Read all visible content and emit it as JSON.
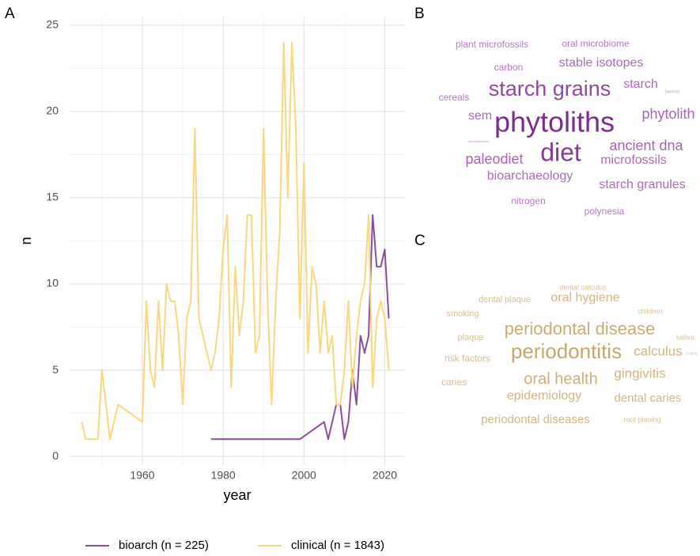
{
  "chart_data": [
    {
      "type": "line",
      "label": "A",
      "xlabel": "year",
      "ylabel": "n",
      "xlim": [
        1942,
        2025
      ],
      "ylim": [
        -0.5,
        25.5
      ],
      "xticks": [
        1960,
        1980,
        2000,
        2020
      ],
      "yticks": [
        0,
        5,
        10,
        15,
        20,
        25
      ],
      "xminor": [
        1950,
        1970,
        1990,
        2010
      ],
      "yminor": [
        2.5,
        7.5,
        12.5,
        17.5,
        22.5
      ],
      "grid": true,
      "legend": "bottom",
      "series": [
        {
          "name": "bioarch (n = 225)",
          "color": "#8a4e9b",
          "x": [
            1977,
            1999,
            2005,
            2006,
            2008,
            2009,
            2010,
            2011,
            2012,
            2013,
            2014,
            2015,
            2016,
            2017,
            2018,
            2019,
            2020,
            2021
          ],
          "values": [
            1,
            1,
            2,
            1,
            3,
            3,
            1,
            2,
            5,
            3,
            7,
            6,
            7,
            14,
            11,
            11,
            12,
            8
          ]
        },
        {
          "name": "clinical (n = 1843)",
          "color": "#f9d77e",
          "x": [
            1945,
            1946,
            1949,
            1950,
            1952,
            1954,
            1960,
            1961,
            1962,
            1963,
            1964,
            1965,
            1966,
            1967,
            1968,
            1969,
            1970,
            1971,
            1972,
            1973,
            1974,
            1977,
            1978,
            1979,
            1980,
            1981,
            1982,
            1983,
            1984,
            1985,
            1986,
            1987,
            1988,
            1989,
            1990,
            1991,
            1992,
            1993,
            1994,
            1995,
            1996,
            1997,
            1998,
            1999,
            2000,
            2001,
            2002,
            2003,
            2004,
            2005,
            2006,
            2007,
            2008,
            2009,
            2010,
            2011,
            2012,
            2013,
            2014,
            2015,
            2016,
            2017,
            2018,
            2019,
            2020,
            2021
          ],
          "values": [
            2,
            1,
            1,
            5,
            1,
            3,
            2,
            9,
            5,
            4,
            9,
            5,
            10,
            9,
            9,
            7,
            3,
            8,
            9,
            19,
            8,
            5,
            6,
            8,
            12,
            14,
            4,
            11,
            7,
            9,
            14,
            14,
            6,
            7,
            19,
            9,
            3,
            9,
            13,
            24,
            15,
            24,
            19,
            8,
            17,
            6,
            11,
            10,
            6,
            9,
            6,
            7,
            3,
            3,
            5,
            9,
            4,
            7,
            9,
            10,
            14,
            4,
            8,
            9,
            8,
            5
          ]
        }
      ]
    },
    {
      "type": "wordcloud",
      "label": "B",
      "colors": [
        "#c591cf",
        "#7b2d8e"
      ],
      "words": [
        "plant microfossils",
        "oral microbiome",
        "carbon",
        "stable isotopes",
        "cereals",
        "starch grains",
        "starch",
        "bacteria",
        "sem",
        "phytoliths",
        "phytolith",
        "archaeobotany",
        "paleodiet",
        "diet",
        "ancient dna",
        "microfossils",
        "bioarchaeology",
        "starch granules",
        "nitrogen",
        "polynesia"
      ],
      "values": [
        12,
        12,
        12,
        16,
        12,
        27,
        16,
        5,
        16,
        36,
        18,
        4,
        18,
        32,
        18,
        16,
        16,
        16,
        12,
        12
      ]
    },
    {
      "type": "wordcloud",
      "label": "C",
      "colors": [
        "#ddc79e",
        "#c8a66a"
      ],
      "words": [
        "dental calculus",
        "dental plaque",
        "oral hygiene",
        "children",
        "smoking",
        "saliva",
        "plaque",
        "periodontal disease",
        "scaling",
        "risk factors",
        "periodontitis",
        "calculus",
        "caries",
        "oral health",
        "gingivitis",
        "epidemiology",
        "dental caries",
        "periodontal diseases",
        "root planing"
      ],
      "values": [
        9,
        11,
        16,
        9,
        11,
        9,
        11,
        22,
        5,
        12,
        26,
        17,
        12,
        20,
        17,
        16,
        15,
        15,
        9
      ]
    }
  ]
}
